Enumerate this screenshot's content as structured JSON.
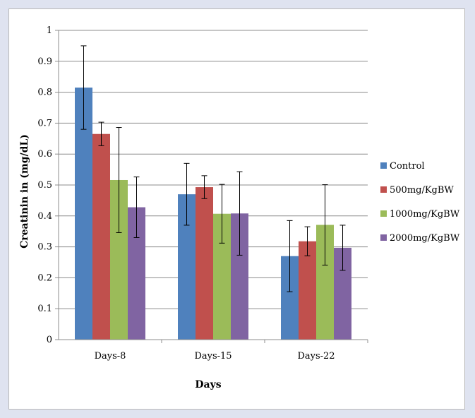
{
  "chart_data": {
    "type": "bar",
    "categories": [
      "Days-8",
      "Days-15",
      "Days-22"
    ],
    "series": [
      {
        "name": "Control",
        "color": "#4f81bd",
        "values": [
          0.815,
          0.47,
          0.27
        ],
        "errors": [
          0.135,
          0.1,
          0.115
        ]
      },
      {
        "name": "500mg/KgBW",
        "color": "#c0504d",
        "values": [
          0.665,
          0.493,
          0.318
        ],
        "errors": [
          0.038,
          0.037,
          0.047
        ]
      },
      {
        "name": "1000mg/KgBW",
        "color": "#9bbb59",
        "values": [
          0.516,
          0.407,
          0.371
        ],
        "errors": [
          0.17,
          0.095,
          0.13
        ]
      },
      {
        "name": "2000mg/KgBW",
        "color": "#8064a2",
        "values": [
          0.428,
          0.408,
          0.297
        ],
        "errors": [
          0.098,
          0.135,
          0.073
        ]
      }
    ],
    "xlabel": "Days",
    "ylabel": "Creatinin in (mg/dL)",
    "ylim": [
      0,
      1
    ],
    "yticks": [
      "0",
      "0.1",
      "0.2",
      "0.3",
      "0.4",
      "0.5",
      "0.6",
      "0.7",
      "0.8",
      "0.9",
      "1"
    ],
    "grid": true,
    "legend_position": "right"
  }
}
